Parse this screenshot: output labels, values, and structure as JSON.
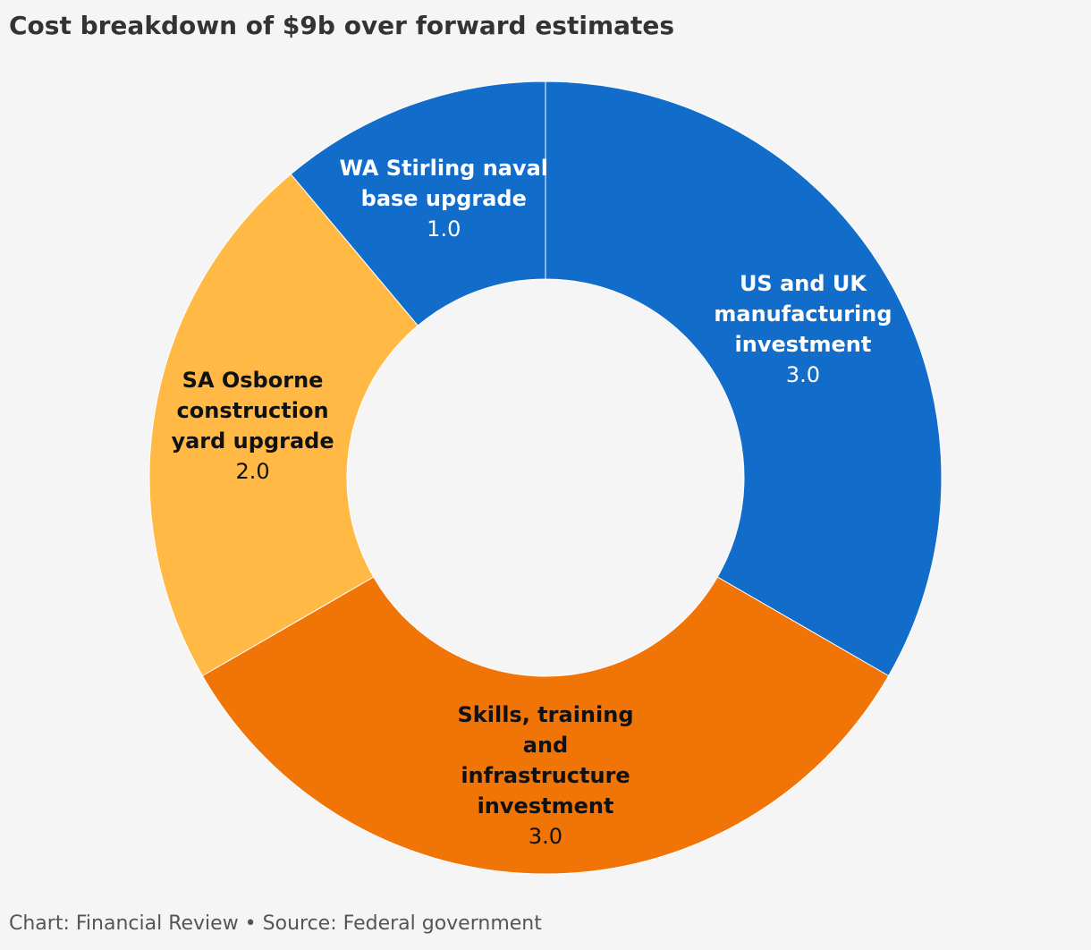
{
  "chart_data": {
    "type": "donut",
    "title": "Cost breakdown of $9b over forward estimates",
    "categories": [
      "US and UK manufacturing investment",
      "Skills, training and infrastructure investment",
      "SA Osborne construction yard upgrade",
      "WA Stirling naval base upgrade"
    ],
    "values": [
      3,
      3,
      2,
      1
    ],
    "value_labels": [
      "3.0",
      "3.0",
      "2.0",
      "1.0"
    ],
    "colors": [
      "#116dc9",
      "#f07406",
      "#ffb944",
      "#116dc9"
    ],
    "source": "Chart: Financial Review • Source: Federal government"
  }
}
